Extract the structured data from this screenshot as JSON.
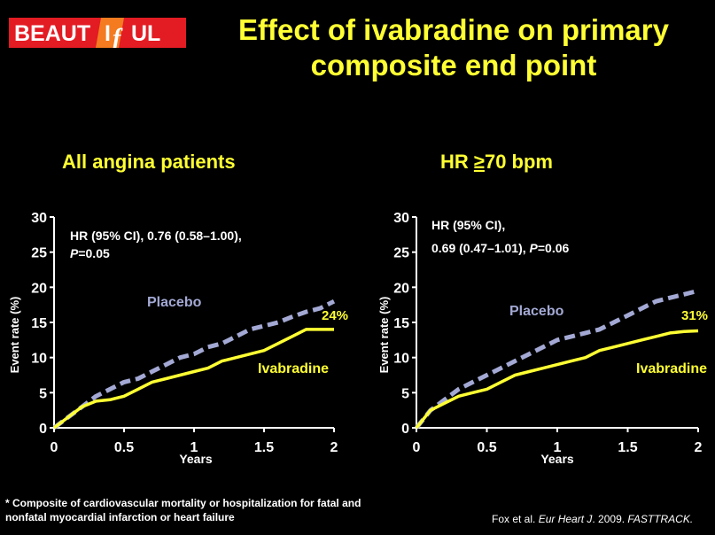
{
  "logo": {
    "text_before": "BEAUT",
    "text_mid": "I",
    "text_f": "f",
    "text_after": "UL",
    "red": "#e31b23",
    "orange": "#f47b20"
  },
  "title": {
    "line1": "Effect of ivabradine on primary",
    "line2": "composite end point"
  },
  "colors": {
    "placebo": "#a3a9d4",
    "ivabradine": "#ffff33",
    "title": "#ffff33",
    "axis": "#ffffff"
  },
  "panels": [
    {
      "title_prefix": "All angina patients",
      "title_underlined": "",
      "title_suffix": ""
    },
    {
      "title_prefix": "HR ",
      "title_underlined": "≥",
      "title_suffix": "70 bpm"
    }
  ],
  "chart_data": [
    {
      "type": "line",
      "xlabel": "Years",
      "ylabel": "Event rate (%)",
      "xlim": [
        0,
        2
      ],
      "ylim": [
        0,
        30
      ],
      "xticks": [
        "0",
        "0.5",
        "1",
        "1.5",
        "2"
      ],
      "yticks": [
        "0",
        "5",
        "10",
        "15",
        "20",
        "25",
        "30"
      ],
      "annotation": [
        "HR (95% CI), 0.76 (0.58–1.00),",
        "P",
        "=0.05"
      ],
      "end_label": "24%",
      "series": [
        {
          "name": "Placebo",
          "style": "dashed",
          "x": [
            0,
            0.1,
            0.2,
            0.3,
            0.4,
            0.5,
            0.6,
            0.7,
            0.8,
            0.9,
            1.0,
            1.1,
            1.2,
            1.3,
            1.4,
            1.5,
            1.6,
            1.7,
            1.8,
            1.9,
            2.0
          ],
          "y": [
            0,
            1.5,
            3.0,
            4.5,
            5.5,
            6.5,
            7.0,
            8.0,
            9.0,
            10.0,
            10.5,
            11.5,
            12.0,
            13.0,
            14.0,
            14.5,
            15.0,
            15.8,
            16.5,
            17.0,
            18.0
          ]
        },
        {
          "name": "Ivabradine",
          "style": "solid",
          "x": [
            0,
            0.1,
            0.2,
            0.3,
            0.4,
            0.5,
            0.6,
            0.7,
            0.8,
            0.9,
            1.0,
            1.1,
            1.2,
            1.3,
            1.4,
            1.5,
            1.6,
            1.7,
            1.8,
            1.9,
            2.0
          ],
          "y": [
            0,
            1.5,
            3.0,
            3.8,
            4.0,
            4.5,
            5.5,
            6.5,
            7.0,
            7.5,
            8.0,
            8.5,
            9.5,
            10.0,
            10.5,
            11.0,
            12.0,
            13.0,
            14.0,
            14.0,
            14.0
          ]
        }
      ]
    },
    {
      "type": "line",
      "xlabel": "Years",
      "ylabel": "Event rate (%)",
      "xlim": [
        0,
        2
      ],
      "ylim": [
        0,
        30
      ],
      "xticks": [
        "0",
        "0.5",
        "1",
        "1.5",
        "2"
      ],
      "yticks": [
        "0",
        "5",
        "10",
        "15",
        "20",
        "25",
        "30"
      ],
      "annotation": [
        "HR (95% CI),",
        "0.69 (0.47–1.01), ",
        "P",
        "=0.06"
      ],
      "end_label": "31%",
      "series": [
        {
          "name": "Placebo",
          "style": "dashed",
          "x": [
            0,
            0.1,
            0.2,
            0.3,
            0.4,
            0.5,
            0.6,
            0.7,
            0.8,
            0.9,
            1.0,
            1.1,
            1.2,
            1.3,
            1.4,
            1.5,
            1.6,
            1.7,
            1.8,
            1.9,
            2.0
          ],
          "y": [
            0,
            2.5,
            4.0,
            5.5,
            6.5,
            7.5,
            8.5,
            9.5,
            10.5,
            11.5,
            12.5,
            13.0,
            13.5,
            14.0,
            15.0,
            16.0,
            17.0,
            18.0,
            18.5,
            19.0,
            19.5
          ]
        },
        {
          "name": "Ivabradine",
          "style": "solid",
          "x": [
            0,
            0.1,
            0.2,
            0.3,
            0.4,
            0.5,
            0.6,
            0.7,
            0.8,
            0.9,
            1.0,
            1.1,
            1.2,
            1.3,
            1.4,
            1.5,
            1.6,
            1.7,
            1.8,
            1.9,
            2.0
          ],
          "y": [
            0,
            2.5,
            3.5,
            4.5,
            5.0,
            5.5,
            6.5,
            7.5,
            8.0,
            8.5,
            9.0,
            9.5,
            10.0,
            11.0,
            11.5,
            12.0,
            12.5,
            13.0,
            13.5,
            13.7,
            13.8
          ]
        }
      ]
    }
  ],
  "footnote": {
    "line1": "* Composite of  cardiovascular mortality or hospitalization for fatal and",
    "line2": "nonfatal myocardial infarction or heart failure"
  },
  "citation": {
    "authors": "Fox et al. ",
    "journal": "Eur Heart J",
    "year": ". 2009. ",
    "track": "FASTTRACK."
  }
}
